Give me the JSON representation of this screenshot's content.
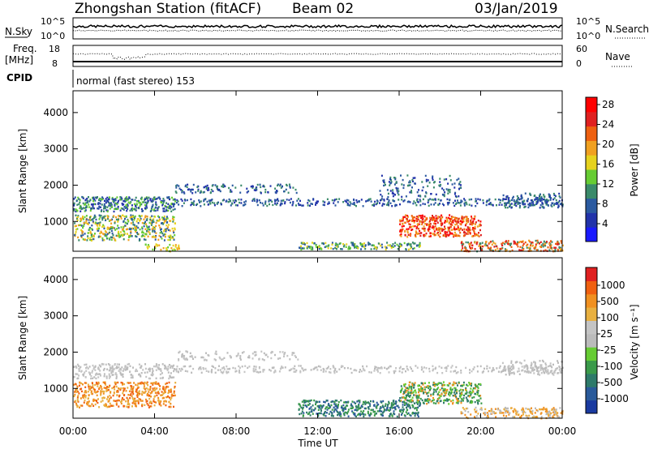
{
  "header": {
    "station": "Zhongshan Station (fitACF)",
    "beam": "Beam 02",
    "date": "03/Jan/2019"
  },
  "panels": {
    "noise": {
      "left_label": "N.Sky",
      "right_label": "N.Search",
      "left_ticks": [
        "10^5",
        "10^0"
      ],
      "right_ticks": [
        "10^5",
        "10^0"
      ]
    },
    "freq": {
      "left_label_1": "Freq.",
      "left_label_2": "[MHz]",
      "right_label": "Nave",
      "left_ticks": [
        "18",
        "8"
      ],
      "right_ticks": [
        "60",
        "0"
      ]
    },
    "cpid": {
      "label": "CPID",
      "text": "normal (fast stereo) 153"
    }
  },
  "chart_data": [
    {
      "type": "heatmap",
      "name": "power",
      "ylabel": "Slant Range [km]",
      "yticks": [
        "1000",
        "2000",
        "3000",
        "4000"
      ],
      "ylim": [
        180,
        4600
      ],
      "x_ticks": [
        "00:00",
        "04:00",
        "08:00",
        "12:00",
        "16:00",
        "20:00",
        "00:00"
      ],
      "colorbar": {
        "label": "Power [dB]",
        "ticks": [
          "4",
          "8",
          "12",
          "16",
          "20",
          "24",
          "28"
        ],
        "colors": [
          "#1a1aff",
          "#2233aa",
          "#2b5aa0",
          "#3a8a6a",
          "#66cc33",
          "#e6d21e",
          "#f0a020",
          "#ee6010",
          "#e02020",
          "#ff0000"
        ]
      }
    },
    {
      "type": "heatmap",
      "name": "velocity",
      "ylabel": "Slant Range [km]",
      "yticks": [
        "1000",
        "2000",
        "3000",
        "4000"
      ],
      "ylim": [
        180,
        4600
      ],
      "x_ticks": [
        "00:00",
        "04:00",
        "08:00",
        "12:00",
        "16:00",
        "20:00",
        "00:00"
      ],
      "xlabel": "Time UT",
      "colorbar": {
        "label": "Velocity [m s⁻¹]",
        "ticks": [
          "1000",
          "500",
          "100",
          "25",
          "-25",
          "-100",
          "-500",
          "-1000"
        ],
        "colors": [
          "#1a3aa0",
          "#2a5a9a",
          "#2e7a6a",
          "#3a9a4a",
          "#66cc33",
          "#bbbbbb",
          "#c4c4c4",
          "#e8b040",
          "#f09020",
          "#f06010",
          "#e02020"
        ]
      }
    }
  ]
}
